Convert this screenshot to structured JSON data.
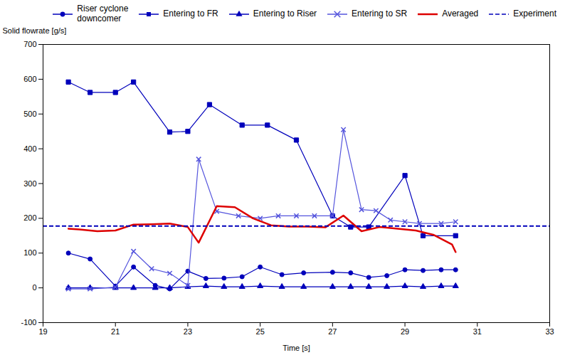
{
  "chart_data": {
    "type": "line",
    "xlabel": "Time [s]",
    "ylabel": "Solid flowrate [g/s]",
    "xlim": [
      19,
      33
    ],
    "ylim": [
      -100,
      700
    ],
    "xticks": [
      19,
      21,
      23,
      25,
      27,
      29,
      31,
      33
    ],
    "yticks": [
      -100,
      0,
      100,
      200,
      300,
      400,
      500,
      600,
      700
    ],
    "grid": false,
    "legend": "upper right",
    "series": [
      {
        "name": "Riser cyclone\ndowncomer",
        "marker": "circle",
        "line_style": "solid",
        "color": "#0000BB",
        "x": [
          19.7,
          20.3,
          21.0,
          21.5,
          22.1,
          22.5,
          23.0,
          23.5,
          24.0,
          24.5,
          25.0,
          25.6,
          26.2,
          27.0,
          27.5,
          28.0,
          28.5,
          29.0,
          29.5,
          30.0,
          30.4
        ],
        "values": [
          100,
          83,
          5,
          60,
          7,
          -3,
          48,
          27,
          28,
          32,
          60,
          38,
          43,
          45,
          43,
          30,
          35,
          52,
          50,
          52,
          52
        ]
      },
      {
        "name": "Entering to FR",
        "marker": "square",
        "line_style": "solid",
        "color": "#0000BB",
        "x": [
          19.7,
          20.3,
          21.0,
          21.5,
          22.5,
          23.0,
          23.6,
          24.5,
          25.2,
          26.0,
          27.0,
          27.5,
          28.0,
          29.0,
          29.5,
          30.4
        ],
        "values": [
          592,
          562,
          562,
          592,
          448,
          450,
          527,
          468,
          468,
          425,
          207,
          175,
          175,
          323,
          150,
          150
        ]
      },
      {
        "name": "Entering to Riser",
        "marker": "triangle",
        "line_style": "solid",
        "color": "#0000BB",
        "x": [
          19.7,
          20.3,
          21.0,
          21.5,
          22.1,
          22.5,
          23.0,
          23.5,
          24.0,
          24.5,
          25.0,
          25.6,
          26.2,
          27.0,
          27.5,
          28.0,
          28.5,
          29.0,
          29.5,
          30.0,
          30.4
        ],
        "values": [
          0,
          0,
          0,
          0,
          0,
          0,
          3,
          5,
          3,
          3,
          5,
          3,
          3,
          3,
          3,
          3,
          3,
          5,
          3,
          5,
          5
        ]
      },
      {
        "name": "Entering to SR",
        "marker": "times",
        "line_style": "solid",
        "color": "#5555DD",
        "x": [
          19.7,
          20.3,
          21.0,
          21.5,
          22.0,
          22.5,
          23.0,
          23.3,
          23.8,
          24.4,
          25.0,
          25.5,
          26.0,
          26.5,
          27.0,
          27.3,
          27.8,
          28.2,
          28.6,
          29.0,
          29.4,
          30.0,
          30.4
        ],
        "values": [
          -3,
          -3,
          2,
          105,
          55,
          42,
          7,
          370,
          220,
          207,
          200,
          207,
          207,
          207,
          207,
          455,
          225,
          222,
          195,
          190,
          185,
          185,
          190
        ]
      },
      {
        "name": "Averaged",
        "line_style": "solid",
        "color": "#DD0000",
        "x": [
          19.7,
          20.0,
          20.5,
          21.0,
          21.5,
          22.0,
          22.5,
          23.0,
          23.3,
          23.8,
          24.3,
          24.8,
          25.3,
          25.8,
          26.3,
          26.8,
          27.3,
          27.8,
          28.3,
          28.8,
          29.3,
          29.8,
          30.3,
          30.4
        ],
        "values": [
          170,
          168,
          163,
          165,
          182,
          183,
          185,
          175,
          130,
          235,
          232,
          200,
          180,
          176,
          176,
          174,
          208,
          163,
          175,
          170,
          165,
          152,
          125,
          103
        ]
      },
      {
        "name": "Experiment",
        "type": "hline",
        "line_style": "dashed",
        "color": "#0000BB",
        "values": [
          178
        ]
      }
    ]
  }
}
